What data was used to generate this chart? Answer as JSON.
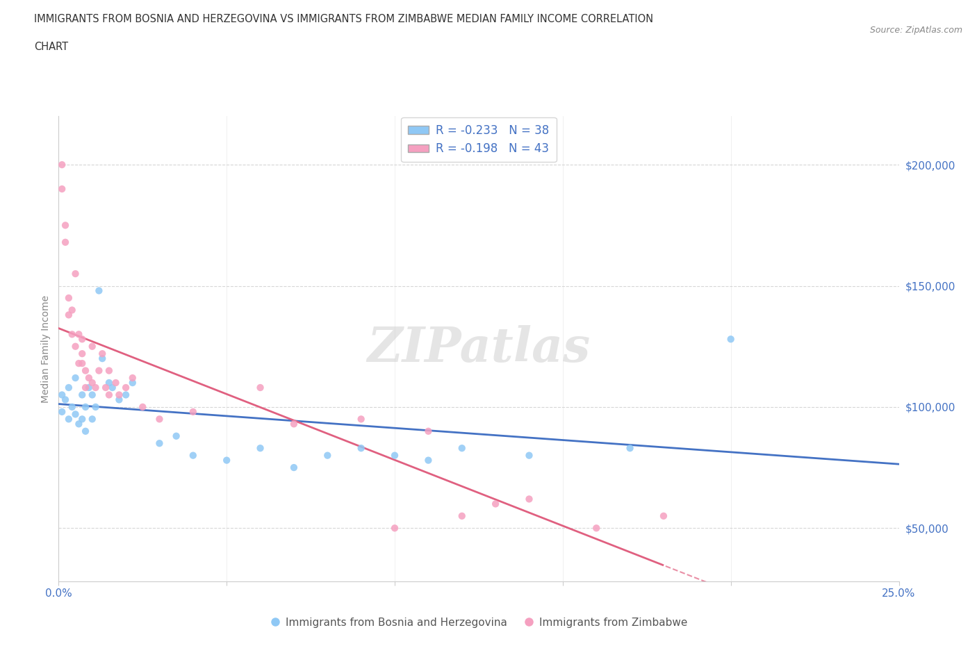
{
  "title_line1": "IMMIGRANTS FROM BOSNIA AND HERZEGOVINA VS IMMIGRANTS FROM ZIMBABWE MEDIAN FAMILY INCOME CORRELATION",
  "title_line2": "CHART",
  "source": "Source: ZipAtlas.com",
  "ylabel": "Median Family Income",
  "xlim": [
    0.0,
    0.25
  ],
  "ylim": [
    28000,
    220000
  ],
  "yticks": [
    50000,
    100000,
    150000,
    200000
  ],
  "ytick_labels": [
    "$50,000",
    "$100,000",
    "$150,000",
    "$200,000"
  ],
  "xticks": [
    0.0,
    0.05,
    0.1,
    0.15,
    0.2,
    0.25
  ],
  "color_bosnia": "#8FC8F5",
  "color_zimbabwe": "#F5A0C0",
  "color_bosnia_line": "#4472C4",
  "color_zimbabwe_line": "#E06080",
  "R_bosnia": -0.233,
  "N_bosnia": 38,
  "R_zimbabwe": -0.198,
  "N_zimbabwe": 43,
  "legend_label_bosnia": "Immigrants from Bosnia and Herzegovina",
  "legend_label_zimbabwe": "Immigrants from Zimbabwe",
  "watermark": "ZIPatlas",
  "bosnia_x": [
    0.001,
    0.001,
    0.002,
    0.003,
    0.003,
    0.004,
    0.005,
    0.005,
    0.006,
    0.007,
    0.007,
    0.008,
    0.008,
    0.009,
    0.01,
    0.01,
    0.011,
    0.012,
    0.013,
    0.015,
    0.016,
    0.018,
    0.02,
    0.022,
    0.03,
    0.035,
    0.04,
    0.05,
    0.06,
    0.07,
    0.08,
    0.09,
    0.1,
    0.11,
    0.12,
    0.14,
    0.17,
    0.2
  ],
  "bosnia_y": [
    105000,
    98000,
    103000,
    108000,
    95000,
    100000,
    112000,
    97000,
    93000,
    105000,
    95000,
    100000,
    90000,
    108000,
    105000,
    95000,
    100000,
    148000,
    120000,
    110000,
    108000,
    103000,
    105000,
    110000,
    85000,
    88000,
    80000,
    78000,
    83000,
    75000,
    80000,
    83000,
    80000,
    78000,
    83000,
    80000,
    83000,
    128000
  ],
  "zimbabwe_x": [
    0.001,
    0.001,
    0.002,
    0.002,
    0.003,
    0.003,
    0.004,
    0.004,
    0.005,
    0.005,
    0.006,
    0.006,
    0.007,
    0.007,
    0.007,
    0.008,
    0.008,
    0.009,
    0.01,
    0.01,
    0.011,
    0.012,
    0.013,
    0.014,
    0.015,
    0.015,
    0.017,
    0.018,
    0.02,
    0.022,
    0.025,
    0.03,
    0.04,
    0.06,
    0.07,
    0.09,
    0.1,
    0.11,
    0.12,
    0.13,
    0.14,
    0.16,
    0.18
  ],
  "zimbabwe_y": [
    200000,
    190000,
    175000,
    168000,
    145000,
    138000,
    140000,
    130000,
    155000,
    125000,
    130000,
    118000,
    128000,
    118000,
    122000,
    115000,
    108000,
    112000,
    125000,
    110000,
    108000,
    115000,
    122000,
    108000,
    115000,
    105000,
    110000,
    105000,
    108000,
    112000,
    100000,
    95000,
    98000,
    108000,
    93000,
    95000,
    50000,
    90000,
    55000,
    60000,
    62000,
    50000,
    55000
  ]
}
